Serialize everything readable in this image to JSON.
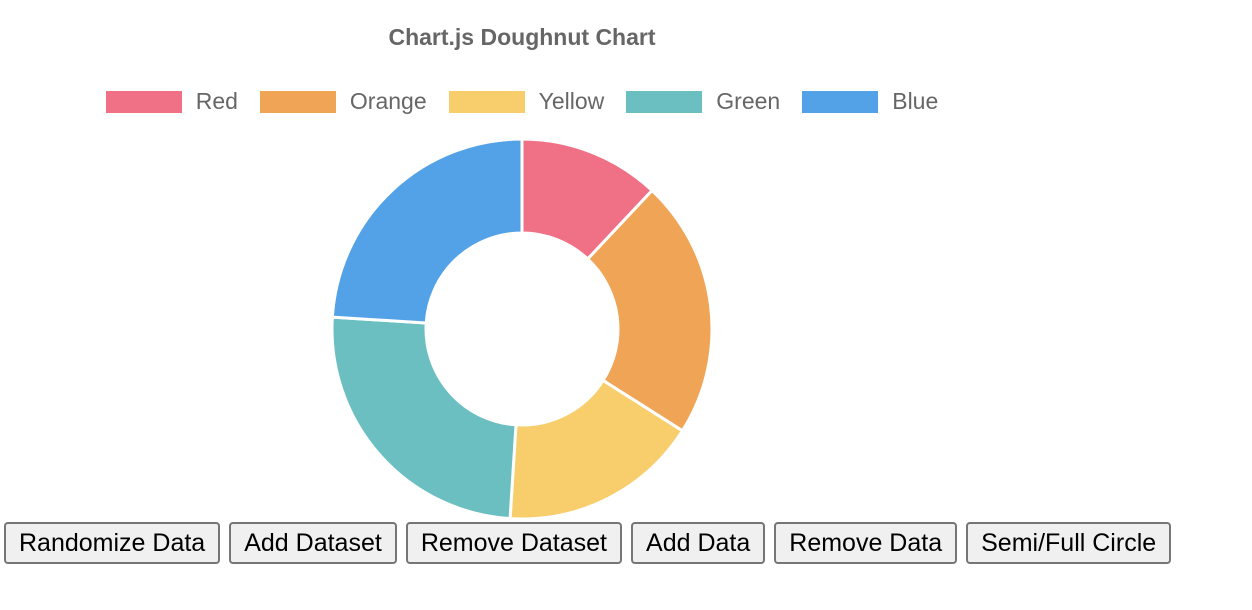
{
  "chart_data": {
    "type": "doughnut",
    "title": "Chart.js Doughnut Chart",
    "categories": [
      "Red",
      "Orange",
      "Yellow",
      "Green",
      "Blue"
    ],
    "values": [
      12,
      22,
      17,
      25,
      24
    ],
    "colors": [
      "#f07086",
      "#f0a455",
      "#f7ce6b",
      "#6bbfc1",
      "#53a1e6"
    ],
    "legend_position": "top",
    "rotation_start": "top",
    "segment_border": "#ffffff"
  },
  "buttons": {
    "randomize": "Randomize Data",
    "add_dataset": "Add Dataset",
    "remove_dataset": "Remove Dataset",
    "add_data": "Add Data",
    "remove_data": "Remove Data",
    "semi_full": "Semi/Full Circle"
  }
}
